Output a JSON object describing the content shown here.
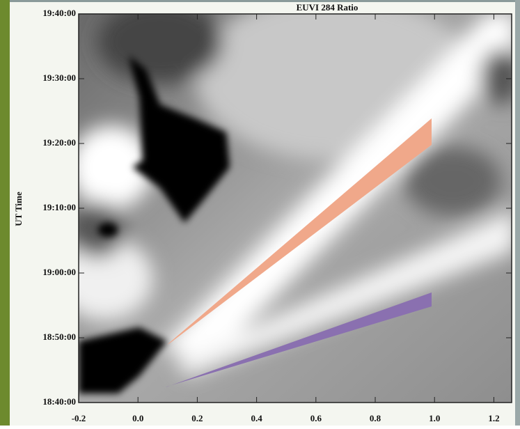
{
  "chart_data": {
    "type": "image",
    "title": "EUVI 284 Ratio",
    "y_label": "UT Time",
    "xlim": [
      -0.2,
      1.26
    ],
    "xticks": [
      {
        "value": -0.2,
        "label": "-0.2"
      },
      {
        "value": 0,
        "label": "0.0"
      },
      0.2,
      0.4,
      0.6,
      0.8,
      {
        "value": 1,
        "label": "1.0"
      },
      1.2
    ],
    "ylim": [
      1120,
      1180
    ],
    "yticks": [
      {
        "value": 1120,
        "label": "18:40:00"
      },
      {
        "value": 1130,
        "label": "18:50:00"
      },
      {
        "value": 1140,
        "label": "19:00:00"
      },
      {
        "value": 1150,
        "label": "19:10:00"
      },
      {
        "value": 1160,
        "label": "19:20:00"
      },
      {
        "value": 1170,
        "label": "19:30:00"
      },
      {
        "value": 1180,
        "label": "19:40:00"
      }
    ]
  }
}
